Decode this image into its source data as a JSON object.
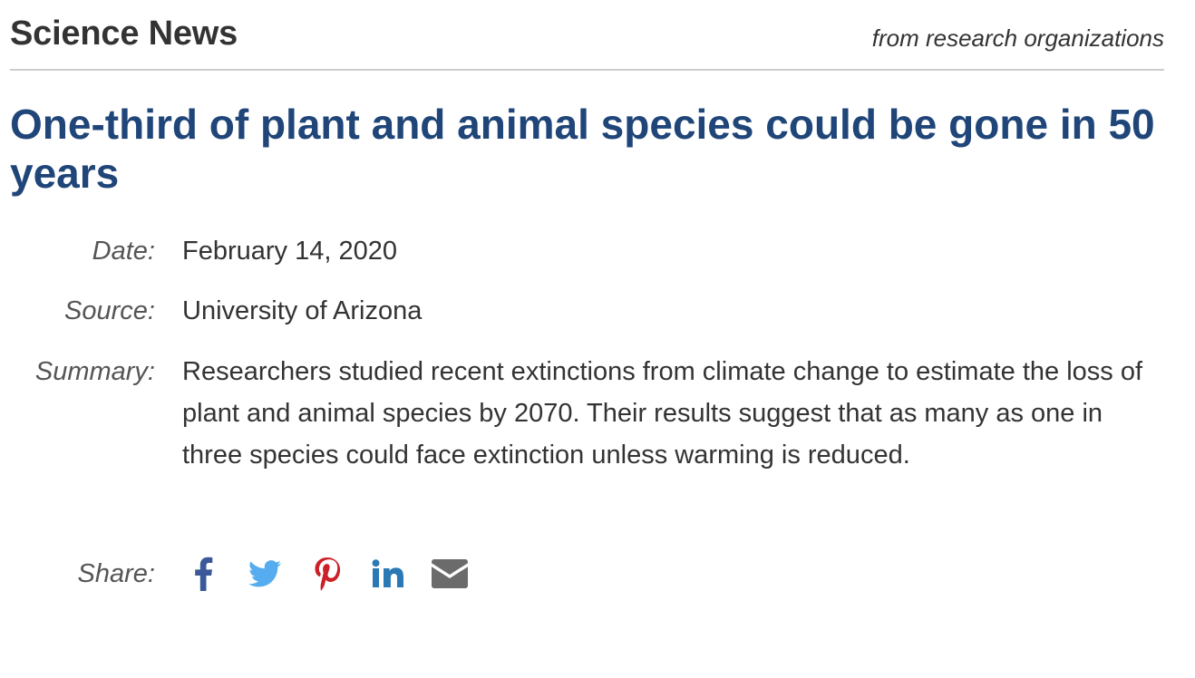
{
  "header": {
    "brand": "Science News",
    "tagline": "from research organizations"
  },
  "article": {
    "headline": "One-third of plant and animal species could be gone in 50 years",
    "meta": {
      "date_label": "Date:",
      "date_value": "February 14, 2020",
      "source_label": "Source:",
      "source_value": "University of Arizona",
      "summary_label": "Summary:",
      "summary_value": "Researchers studied recent extinctions from climate change to estimate the loss of plant and animal species by 2070. Their results suggest that as many as one in three species could face extinction unless warming is reduced.",
      "share_label": "Share:"
    }
  },
  "share": {
    "icons": [
      "facebook-icon",
      "twitter-icon",
      "pinterest-icon",
      "linkedin-icon",
      "email-icon"
    ],
    "colors": {
      "facebook": "#3b5998",
      "twitter": "#55acee",
      "pinterest": "#cb2027",
      "linkedin": "#2b79b4",
      "email": "#6b6b6b"
    }
  },
  "colors": {
    "headline": "#1f4579",
    "text": "#333333",
    "label": "#555555",
    "rule": "#cccccc"
  }
}
